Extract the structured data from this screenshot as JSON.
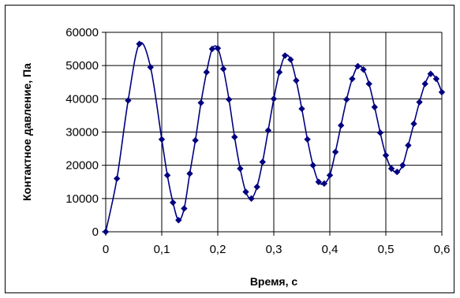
{
  "chart_data": {
    "type": "scatter",
    "title": "",
    "xlabel": "Время, с",
    "ylabel": "Контактное давление, Па",
    "xlim": [
      0,
      0.6
    ],
    "ylim": [
      0,
      60000
    ],
    "x_ticks": [
      0,
      0.1,
      0.2,
      0.3,
      0.4,
      0.5,
      0.6
    ],
    "x_tick_labels": [
      "0",
      "0,1",
      "0,2",
      "0,3",
      "0,4",
      "0,5",
      "0,6"
    ],
    "y_ticks": [
      0,
      10000,
      20000,
      30000,
      40000,
      50000,
      60000
    ],
    "y_tick_labels": [
      "0",
      "10000",
      "20000",
      "30000",
      "40000",
      "50000",
      "60000"
    ],
    "grid": true,
    "legend": "none",
    "colors": {
      "series": "#000080",
      "grid": "#000000",
      "axis": "#000000"
    },
    "series": [
      {
        "marker": "diamond",
        "line": "smooth",
        "points": [
          [
            0,
            0
          ],
          [
            0.02,
            16000
          ],
          [
            0.04,
            39500
          ],
          [
            0.06,
            56500
          ],
          [
            0.08,
            49500
          ],
          [
            0.1,
            27800
          ],
          [
            0.11,
            17000
          ],
          [
            0.12,
            8800
          ],
          [
            0.13,
            3500
          ],
          [
            0.14,
            7000
          ],
          [
            0.15,
            17500
          ],
          [
            0.16,
            27500
          ],
          [
            0.17,
            38800
          ],
          [
            0.18,
            48000
          ],
          [
            0.19,
            55000
          ],
          [
            0.2,
            55200
          ],
          [
            0.21,
            49000
          ],
          [
            0.22,
            39800
          ],
          [
            0.23,
            28500
          ],
          [
            0.24,
            19000
          ],
          [
            0.25,
            12000
          ],
          [
            0.26,
            10000
          ],
          [
            0.27,
            13500
          ],
          [
            0.28,
            21000
          ],
          [
            0.29,
            30500
          ],
          [
            0.3,
            40000
          ],
          [
            0.31,
            48000
          ],
          [
            0.32,
            53000
          ],
          [
            0.33,
            51800
          ],
          [
            0.34,
            45500
          ],
          [
            0.35,
            37000
          ],
          [
            0.36,
            27800
          ],
          [
            0.37,
            20000
          ],
          [
            0.38,
            15000
          ],
          [
            0.39,
            14500
          ],
          [
            0.4,
            17000
          ],
          [
            0.41,
            24000
          ],
          [
            0.42,
            32000
          ],
          [
            0.43,
            39800
          ],
          [
            0.44,
            46000
          ],
          [
            0.45,
            49800
          ],
          [
            0.46,
            48800
          ],
          [
            0.47,
            44500
          ],
          [
            0.48,
            37500
          ],
          [
            0.49,
            29800
          ],
          [
            0.5,
            23000
          ],
          [
            0.51,
            19000
          ],
          [
            0.52,
            18000
          ],
          [
            0.53,
            20000
          ],
          [
            0.54,
            26000
          ],
          [
            0.55,
            32500
          ],
          [
            0.56,
            39000
          ],
          [
            0.57,
            44500
          ],
          [
            0.58,
            47500
          ],
          [
            0.59,
            46000
          ],
          [
            0.6,
            42000
          ]
        ]
      }
    ]
  }
}
